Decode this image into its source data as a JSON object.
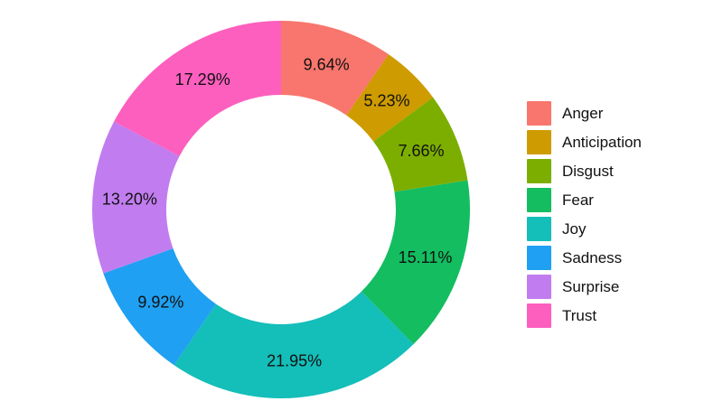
{
  "chart_data": {
    "type": "pie",
    "subtype": "donut",
    "title": "",
    "categories": [
      "Anger",
      "Anticipation",
      "Disgust",
      "Fear",
      "Joy",
      "Sadness",
      "Surprise",
      "Trust"
    ],
    "values": [
      9.64,
      5.23,
      7.66,
      15.11,
      21.95,
      9.92,
      13.2,
      17.29
    ],
    "labels": [
      "9.64%",
      "5.23%",
      "7.66%",
      "15.11%",
      "21.95%",
      "9.92%",
      "13.20%",
      "17.29%"
    ],
    "colors": [
      "#F8766D",
      "#CE9B00",
      "#7CAE00",
      "#13BD60",
      "#14BEB9",
      "#1FA0F2",
      "#C17DF0",
      "#FC5FBE"
    ],
    "label_color": "#111111",
    "background": "#ffffff",
    "start_angle_deg": 0,
    "direction": "clockwise",
    "donut_hole_ratio": 0.61,
    "legend_position": "right"
  }
}
